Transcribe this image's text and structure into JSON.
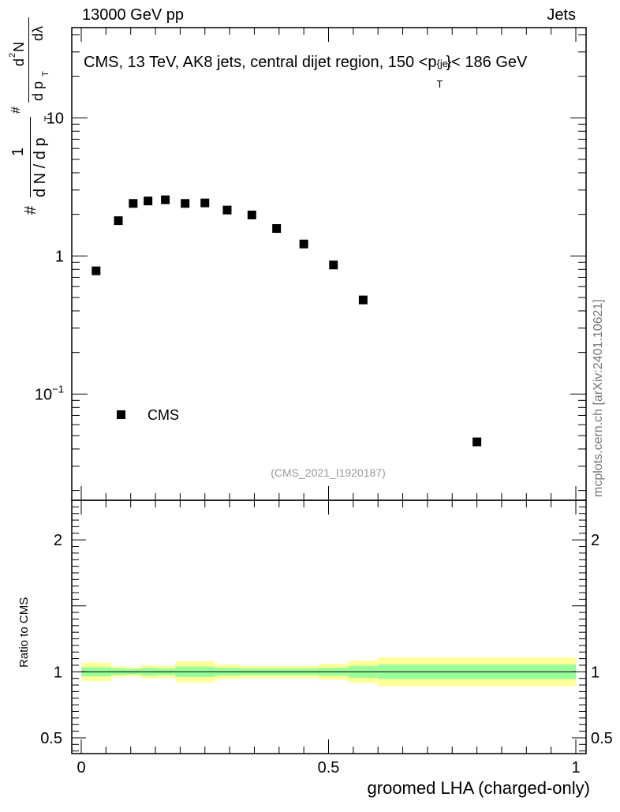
{
  "header": {
    "left": "13000 GeV pp",
    "right": "Jets"
  },
  "watermark": "mcplots.cern.ch [arXiv:2401.10621]",
  "chart_data": [
    {
      "type": "scatter",
      "panel": "main",
      "title": "CMS, 13 TeV, AK8 jets, central dijet region, 150 <p_T^{jet}< 186 GeV",
      "title_parts": {
        "prefix": "CMS, 13 TeV, AK8 jets, central dijet region, 150 <p",
        "sub": "T",
        "sup": "{jet",
        "suffix": "}< 186 GeV"
      },
      "ylabel_parts": {
        "hash1": "#",
        "one": "1",
        "den": "d N / d p",
        "den_sub": "T",
        "hash2": "#",
        "num_top": "d",
        "num_sup": "2",
        "num_N": "N",
        "num_bottom": "d p",
        "num_bottom_sub": "T",
        "num_dl": "dλ"
      },
      "yscale": "log",
      "ylim": [
        0.017,
        45
      ],
      "yticks": [
        {
          "value": 0.1,
          "label": "10",
          "sup": "−1"
        },
        {
          "value": 1,
          "label": "1"
        },
        {
          "value": 10,
          "label": "10"
        }
      ],
      "legend": {
        "position": "bottom-left",
        "entries": [
          "CMS"
        ]
      },
      "annotation": "(CMS_2021_I1920187)",
      "series": [
        {
          "name": "CMS",
          "x": [
            0.03,
            0.075,
            0.105,
            0.135,
            0.17,
            0.21,
            0.25,
            0.295,
            0.345,
            0.395,
            0.45,
            0.51,
            0.57,
            0.8
          ],
          "y": [
            0.78,
            1.8,
            2.4,
            2.5,
            2.55,
            2.4,
            2.42,
            2.15,
            1.98,
            1.58,
            1.22,
            0.86,
            0.48,
            0.045
          ]
        }
      ]
    },
    {
      "type": "area",
      "panel": "ratio",
      "xlabel": "groomed LHA (charged-only)",
      "ylabel": "Ratio to CMS",
      "xlim": [
        0,
        1
      ],
      "ylim": [
        0.38,
        2.3
      ],
      "xticks": [
        {
          "value": 0,
          "label": "0"
        },
        {
          "value": 0.5,
          "label": "0.5"
        },
        {
          "value": 1,
          "label": "1"
        }
      ],
      "yticks": [
        {
          "value": 0.5,
          "label": "0.5"
        },
        {
          "value": 1,
          "label": "1"
        },
        {
          "value": 2,
          "label": "2"
        }
      ],
      "reference_line": 1,
      "bands": [
        {
          "xlo": 0.0,
          "xhi": 0.06,
          "stat": 0.035,
          "total": 0.07
        },
        {
          "xlo": 0.06,
          "xhi": 0.09,
          "stat": 0.025,
          "total": 0.04
        },
        {
          "xlo": 0.09,
          "xhi": 0.12,
          "stat": 0.02,
          "total": 0.035
        },
        {
          "xlo": 0.12,
          "xhi": 0.15,
          "stat": 0.03,
          "total": 0.05
        },
        {
          "xlo": 0.15,
          "xhi": 0.19,
          "stat": 0.025,
          "total": 0.045
        },
        {
          "xlo": 0.19,
          "xhi": 0.27,
          "stat": 0.04,
          "total": 0.08
        },
        {
          "xlo": 0.27,
          "xhi": 0.32,
          "stat": 0.03,
          "total": 0.055
        },
        {
          "xlo": 0.32,
          "xhi": 0.48,
          "stat": 0.025,
          "total": 0.045
        },
        {
          "xlo": 0.48,
          "xhi": 0.54,
          "stat": 0.03,
          "total": 0.06
        },
        {
          "xlo": 0.54,
          "xhi": 0.6,
          "stat": 0.045,
          "total": 0.085
        },
        {
          "xlo": 0.6,
          "xhi": 1.0,
          "stat": 0.055,
          "total": 0.11
        }
      ]
    }
  ]
}
